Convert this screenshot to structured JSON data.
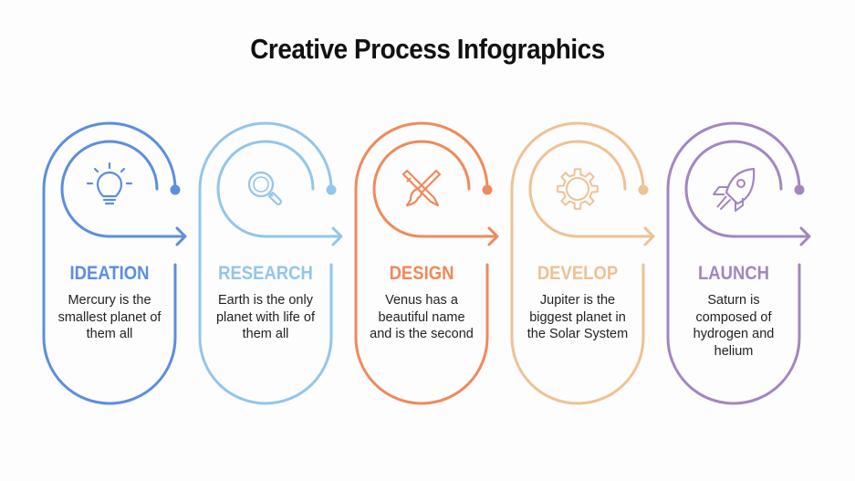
{
  "title": "Creative Process Infographics",
  "steps": [
    {
      "title": "IDEATION",
      "description": "Mercury is the smallest planet of them all",
      "color": "#5b8ede",
      "icon": "lightbulb-icon"
    },
    {
      "title": "RESEARCH",
      "description": "Earth is the only planet with life of them all",
      "color": "#92c6ea",
      "icon": "magnifier-icon"
    },
    {
      "title": "DESIGN",
      "description": "Venus has a beautiful name and is the second",
      "color": "#f0895a",
      "icon": "pencil-brush-icon"
    },
    {
      "title": "DEVELOP",
      "description": "Jupiter is the biggest planet in the Solar System",
      "color": "#efc194",
      "icon": "gear-icon"
    },
    {
      "title": "LAUNCH",
      "description": "Saturn is composed of hydrogen and helium",
      "color": "#a386c0",
      "icon": "rocket-icon"
    }
  ]
}
